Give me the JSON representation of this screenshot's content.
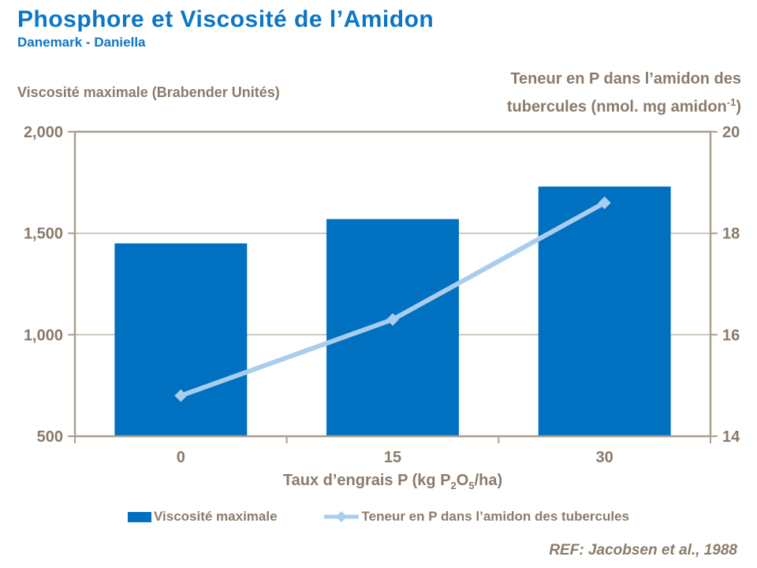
{
  "slide": {
    "title": "Phosphore et Viscosité de l’Amidon",
    "subtitle": "Danemark - Daniella",
    "reference": "REF: Jacobsen et al., 1988"
  },
  "colors": {
    "title_blue": "#0b76c8",
    "bar_blue": "#0070c0",
    "line_light_blue": "#a8cdee",
    "text_brown": "#8a7a6a",
    "axis_line": "#ab9f90",
    "gridline": "#c6bbad"
  },
  "chart_data": {
    "type": "bar",
    "subtype": "bar+line combo",
    "categories": [
      "0",
      "15",
      "30"
    ],
    "series": [
      {
        "name": "Viscosité maximale",
        "type": "bar",
        "axis": "left",
        "values": [
          1450,
          1570,
          1730
        ]
      },
      {
        "name": "Teneur en P dans l’amidon des tubercules",
        "type": "line",
        "axis": "right",
        "values": [
          14.8,
          16.3,
          18.6
        ]
      }
    ],
    "left_axis": {
      "title": "Viscosité maximale (Brabender Unités)",
      "min": 500,
      "max": 2000,
      "tick_values": [
        500,
        1000,
        1500,
        2000
      ],
      "tick_labels": [
        "500",
        "1,000",
        "1,500",
        "2,000"
      ]
    },
    "right_axis": {
      "title_line1": "Teneur en P dans l’amidon des",
      "title_line2_parts": [
        "tubercules (nmol. mg amidon",
        "-1",
        ")"
      ],
      "min": 14,
      "max": 20,
      "tick_values": [
        14,
        16,
        18,
        20
      ],
      "tick_labels": [
        "14",
        "16",
        "18",
        "20"
      ]
    },
    "x_axis": {
      "label_parts": [
        "Taux d’engrais P (kg P",
        "2",
        "O",
        "5",
        "/ha)"
      ]
    },
    "grid": "horizontal gridlines at left-axis ticks, drawn behind bars",
    "legend_position": "bottom"
  }
}
